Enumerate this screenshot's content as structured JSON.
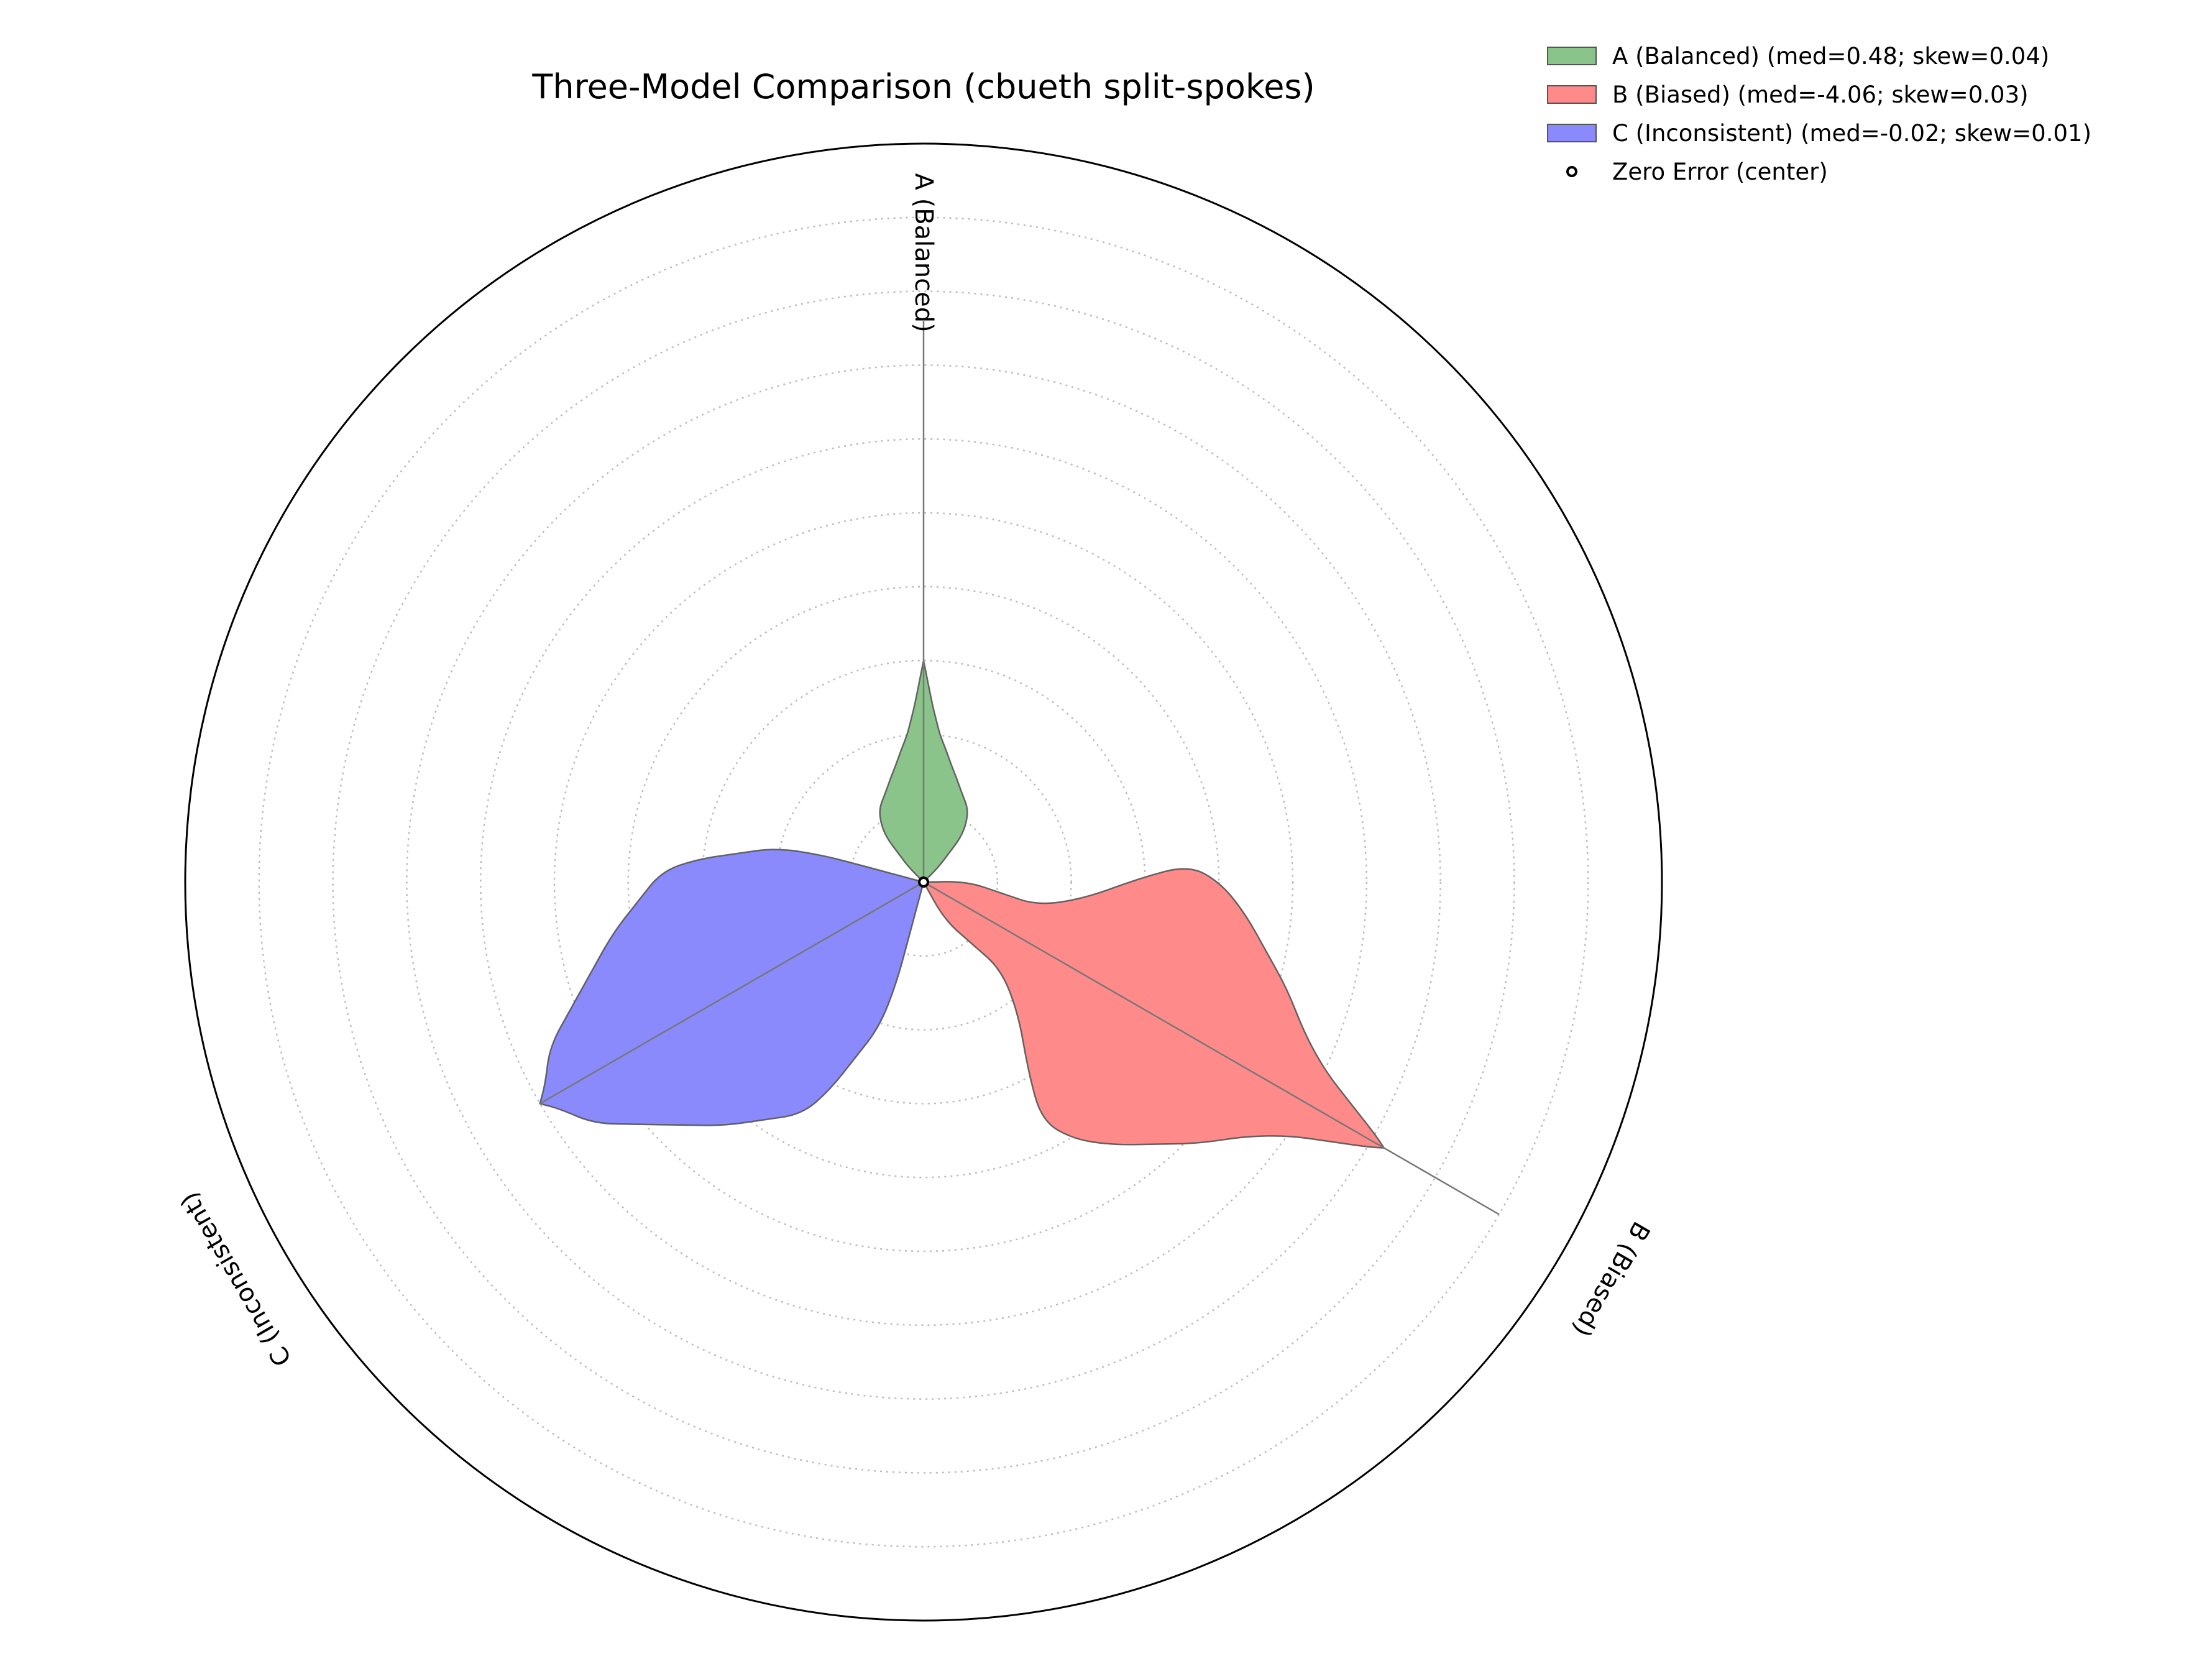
{
  "chart_data": {
    "type": "radar",
    "title": "Three-Model Comparison (cbueth split-spokes)",
    "r_max": 1.0,
    "grid": true,
    "grid_rings": [
      0.1,
      0.2,
      0.3,
      0.4,
      0.5,
      0.6,
      0.7,
      0.8,
      0.9,
      1.0
    ],
    "legend_position": "top-right",
    "spokes": [
      {
        "label": "A (Balanced)",
        "angle_deg": 90,
        "legend": "A (Balanced)  (med=0.48; skew=0.04)",
        "color": "#008000",
        "fill": "#8bc48a",
        "tip_r": 0.76,
        "profile": [
          {
            "r": 0.0,
            "w": 0.0
          },
          {
            "r": 0.02,
            "w": 0.02
          },
          {
            "r": 0.04,
            "w": 0.035
          },
          {
            "r": 0.06,
            "w": 0.05
          },
          {
            "r": 0.08,
            "w": 0.058
          },
          {
            "r": 0.1,
            "w": 0.06
          },
          {
            "r": 0.12,
            "w": 0.052
          },
          {
            "r": 0.14,
            "w": 0.045
          },
          {
            "r": 0.16,
            "w": 0.037
          },
          {
            "r": 0.18,
            "w": 0.03
          },
          {
            "r": 0.2,
            "w": 0.022
          },
          {
            "r": 0.22,
            "w": 0.017
          },
          {
            "r": 0.24,
            "w": 0.012
          },
          {
            "r": 0.26,
            "w": 0.008
          },
          {
            "r": 0.28,
            "w": 0.004
          },
          {
            "r": 0.3,
            "w": 0.0
          }
        ]
      },
      {
        "label": "B (Biased)",
        "angle_deg": -30,
        "legend": "B (Biased)  (med=-4.06; skew=0.03)",
        "color": "#ff0000",
        "fill": "#ff8a8a",
        "tip_r": 0.9,
        "profile": [
          {
            "r": 0.0,
            "w": 0.0
          },
          {
            "r": 0.05,
            "w": 0.03
          },
          {
            "r": 0.1,
            "w": 0.04
          },
          {
            "r": 0.15,
            "w": 0.05
          },
          {
            "r": 0.2,
            "w": 0.09
          },
          {
            "r": 0.25,
            "w": 0.15
          },
          {
            "r": 0.3,
            "w": 0.2
          },
          {
            "r": 0.35,
            "w": 0.2
          },
          {
            "r": 0.4,
            "w": 0.18
          },
          {
            "r": 0.45,
            "w": 0.15
          },
          {
            "r": 0.5,
            "w": 0.12
          },
          {
            "r": 0.55,
            "w": 0.08
          },
          {
            "r": 0.6,
            "w": 0.05
          },
          {
            "r": 0.65,
            "w": 0.03
          },
          {
            "r": 0.7,
            "w": 0.01
          },
          {
            "r": 0.72,
            "w": 0.0
          }
        ]
      },
      {
        "label": "C (Inconsistent)",
        "angle_deg": 210,
        "legend": "C (Inconsistent)  (med=-0.02; skew=0.01)",
        "color": "#0000ff",
        "fill": "#8a8afc",
        "tip_r": 0.6,
        "profile": [
          {
            "r": 0.0,
            "w": 0.0
          },
          {
            "r": 0.02,
            "w": 0.02
          },
          {
            "r": 0.05,
            "w": 0.05
          },
          {
            "r": 0.1,
            "w": 0.1
          },
          {
            "r": 0.15,
            "w": 0.14
          },
          {
            "r": 0.2,
            "w": 0.16
          },
          {
            "r": 0.25,
            "w": 0.18
          },
          {
            "r": 0.3,
            "w": 0.19
          },
          {
            "r": 0.35,
            "w": 0.17
          },
          {
            "r": 0.4,
            "w": 0.15
          },
          {
            "r": 0.45,
            "w": 0.12
          },
          {
            "r": 0.5,
            "w": 0.09
          },
          {
            "r": 0.55,
            "w": 0.06
          },
          {
            "r": 0.58,
            "w": 0.02
          },
          {
            "r": 0.6,
            "w": 0.0
          }
        ]
      }
    ],
    "center_marker": {
      "label": "Zero Error (center)"
    }
  }
}
